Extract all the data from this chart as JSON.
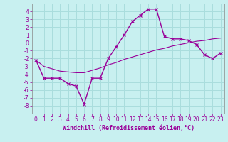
{
  "xlabel": "Windchill (Refroidissement éolien,°C)",
  "bg_color": "#c8f0f0",
  "grid_color": "#aadddd",
  "line_color": "#990099",
  "x_data": [
    0,
    1,
    2,
    3,
    4,
    5,
    6,
    7,
    8,
    9,
    10,
    11,
    12,
    13,
    14,
    15,
    16,
    17,
    18,
    19,
    20,
    21,
    22,
    23
  ],
  "y1_data": [
    -2.2,
    -4.5,
    -4.5,
    -4.5,
    -5.2,
    -5.5,
    -7.8,
    -4.5,
    -4.5,
    -2.0,
    -0.5,
    1.0,
    2.7,
    3.5,
    4.3,
    4.3,
    0.8,
    0.5,
    0.5,
    0.3,
    -0.2,
    -1.5,
    -2.0,
    -1.3
  ],
  "y2_data": [
    -2.2,
    -3.0,
    -3.3,
    -3.6,
    -3.7,
    -3.8,
    -3.8,
    -3.5,
    -3.2,
    -2.8,
    -2.5,
    -2.1,
    -1.8,
    -1.5,
    -1.2,
    -0.9,
    -0.7,
    -0.4,
    -0.2,
    0.0,
    0.2,
    0.3,
    0.5,
    0.6
  ],
  "ylim": [
    -9,
    5
  ],
  "xlim": [
    -0.5,
    23.5
  ],
  "yticks": [
    -8,
    -7,
    -6,
    -5,
    -4,
    -3,
    -2,
    -1,
    0,
    1,
    2,
    3,
    4
  ],
  "xticks": [
    0,
    1,
    2,
    3,
    4,
    5,
    6,
    7,
    8,
    9,
    10,
    11,
    12,
    13,
    14,
    15,
    16,
    17,
    18,
    19,
    20,
    21,
    22,
    23
  ],
  "tick_fontsize": 5.5,
  "xlabel_fontsize": 6.0
}
